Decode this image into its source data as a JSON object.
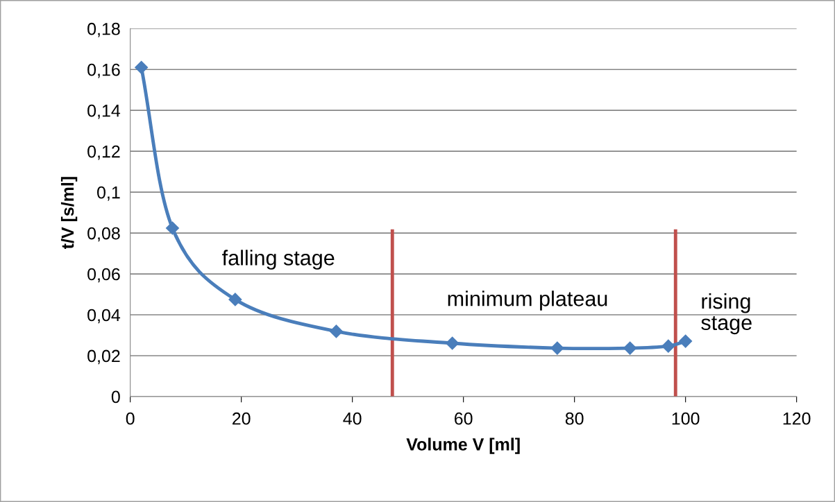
{
  "chart_data": {
    "type": "line",
    "xlabel": "Volume V [ml]",
    "ylabel": "t/V [s/ml]",
    "x": [
      2.0,
      7.6,
      18.9,
      37.1,
      58.0,
      76.9,
      90.0,
      96.9,
      100.0
    ],
    "series": [
      {
        "color": "#4a7ebb",
        "values": [
          0.161,
          0.0824,
          0.0475,
          0.0319,
          0.0261,
          0.0237,
          0.0237,
          0.0247,
          0.0271
        ]
      }
    ],
    "xlim": [
      0,
      120
    ],
    "xticks": [
      0,
      20,
      40,
      60,
      80,
      100,
      120
    ],
    "ylim": [
      0,
      0.18
    ],
    "yticks": [
      0,
      {
        "value": 0.02,
        "label": "0,02"
      },
      {
        "value": 0.04,
        "label": "0,04"
      },
      {
        "value": 0.06,
        "label": "0,06"
      },
      {
        "value": 0.08,
        "label": "0,08"
      },
      {
        "value": 0.1,
        "label": "0,1"
      },
      {
        "value": 0.12,
        "label": "0,12"
      },
      {
        "value": 0.14,
        "label": "0,14"
      },
      {
        "value": 0.16,
        "label": "0,16"
      },
      {
        "value": 0.18,
        "label": "0,18"
      }
    ],
    "ref_lines": [
      {
        "axis": "x",
        "value": 47.2,
        "color": "#c0504d"
      },
      {
        "axis": "x",
        "value": 98.2,
        "color": "#c0504d"
      }
    ],
    "annotations": [
      "falling stage",
      "minimum plateau",
      "rising\nstage"
    ],
    "grid": "y",
    "marker": "diamond",
    "line_style": "solid",
    "legend": false
  }
}
